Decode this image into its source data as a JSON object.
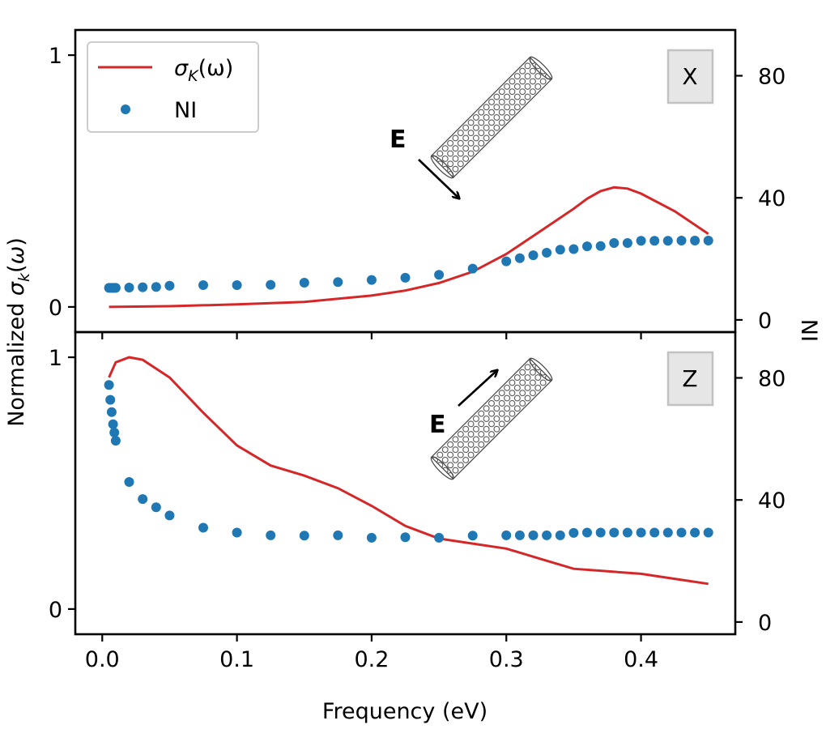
{
  "chart_data": {
    "type": "line+scatter",
    "xlabel": "Frequency (eV)",
    "ylabel_left": "Normalized σk(ω)",
    "ylabel_right": "NI",
    "xlim": [
      -0.02,
      0.47
    ],
    "xticks": [
      0.0,
      0.1,
      0.2,
      0.3,
      0.4
    ],
    "xtick_labels": [
      "0.0",
      "0.1",
      "0.2",
      "0.3",
      "0.4"
    ],
    "legend": {
      "location": "upper-left",
      "line_label_main": "σ",
      "line_label_sub": "K",
      "line_label_tail": "(ω)",
      "scatter_label": "NI"
    },
    "colors": {
      "line": "#d62728",
      "scatter": "#1f77b4"
    },
    "panels": [
      {
        "name": "X",
        "label": "X",
        "efield_label": "E",
        "left_ylim": [
          -0.1,
          1.1
        ],
        "left_yticks": [
          0,
          1
        ],
        "left_ytick_labels": [
          "0",
          "1"
        ],
        "right_ylim": [
          -4,
          95
        ],
        "right_yticks": [
          0,
          40,
          80
        ],
        "right_ytick_labels": [
          "0",
          "40",
          "80"
        ],
        "line": {
          "x": [
            0.005,
            0.05,
            0.1,
            0.15,
            0.2,
            0.225,
            0.25,
            0.275,
            0.3,
            0.325,
            0.35,
            0.36,
            0.37,
            0.38,
            0.39,
            0.4,
            0.425,
            0.45
          ],
          "y": [
            0.0,
            0.003,
            0.01,
            0.02,
            0.045,
            0.065,
            0.095,
            0.14,
            0.21,
            0.3,
            0.39,
            0.43,
            0.46,
            0.475,
            0.47,
            0.45,
            0.38,
            0.29
          ]
        },
        "scatter": {
          "x": [
            0.005,
            0.006,
            0.007,
            0.008,
            0.009,
            0.01,
            0.02,
            0.03,
            0.04,
            0.05,
            0.075,
            0.1,
            0.125,
            0.15,
            0.175,
            0.2,
            0.225,
            0.25,
            0.275,
            0.3,
            0.31,
            0.32,
            0.33,
            0.34,
            0.35,
            0.36,
            0.37,
            0.38,
            0.39,
            0.4,
            0.41,
            0.42,
            0.43,
            0.44,
            0.45
          ],
          "y": [
            10.5,
            10.5,
            10.5,
            10.5,
            10.5,
            10.5,
            10.6,
            10.7,
            10.8,
            11.2,
            11.4,
            11.4,
            11.5,
            12.2,
            12.4,
            13.1,
            13.8,
            14.8,
            16.8,
            19.2,
            20.2,
            21.2,
            22.0,
            23.0,
            23.2,
            24.1,
            24.2,
            25.2,
            25.2,
            25.9,
            25.9,
            25.9,
            26.0,
            26.0,
            26.0
          ]
        }
      },
      {
        "name": "Z",
        "label": "Z",
        "efield_label": "E",
        "left_ylim": [
          -0.1,
          1.1
        ],
        "left_yticks": [
          0,
          1
        ],
        "left_ytick_labels": [
          "0",
          "1"
        ],
        "right_ylim": [
          -4,
          95
        ],
        "right_yticks": [
          0,
          40,
          80
        ],
        "right_ytick_labels": [
          "0",
          "40",
          "80"
        ],
        "line": {
          "x": [
            0.005,
            0.01,
            0.02,
            0.03,
            0.05,
            0.075,
            0.1,
            0.125,
            0.15,
            0.175,
            0.2,
            0.225,
            0.25,
            0.275,
            0.3,
            0.325,
            0.35,
            0.375,
            0.4,
            0.425,
            0.45
          ],
          "y": [
            0.92,
            0.98,
            1.0,
            0.99,
            0.92,
            0.78,
            0.65,
            0.57,
            0.53,
            0.48,
            0.41,
            0.33,
            0.28,
            0.26,
            0.24,
            0.2,
            0.16,
            0.15,
            0.14,
            0.12,
            0.1
          ]
        },
        "scatter": {
          "x": [
            0.005,
            0.006,
            0.007,
            0.008,
            0.009,
            0.01,
            0.02,
            0.03,
            0.04,
            0.05,
            0.075,
            0.1,
            0.125,
            0.15,
            0.175,
            0.2,
            0.225,
            0.25,
            0.275,
            0.3,
            0.31,
            0.32,
            0.33,
            0.34,
            0.35,
            0.36,
            0.37,
            0.38,
            0.39,
            0.4,
            0.41,
            0.42,
            0.43,
            0.44,
            0.45
          ],
          "y": [
            77.7,
            72.8,
            68.8,
            64.8,
            62.1,
            59.4,
            45.9,
            40.3,
            37.6,
            34.9,
            30.9,
            29.3,
            28.4,
            28.3,
            28.4,
            27.6,
            27.8,
            27.6,
            28.3,
            28.4,
            28.4,
            28.4,
            28.4,
            28.4,
            29.2,
            29.3,
            29.3,
            29.3,
            29.3,
            29.3,
            29.3,
            29.3,
            29.3,
            29.3,
            29.3
          ]
        }
      }
    ]
  }
}
